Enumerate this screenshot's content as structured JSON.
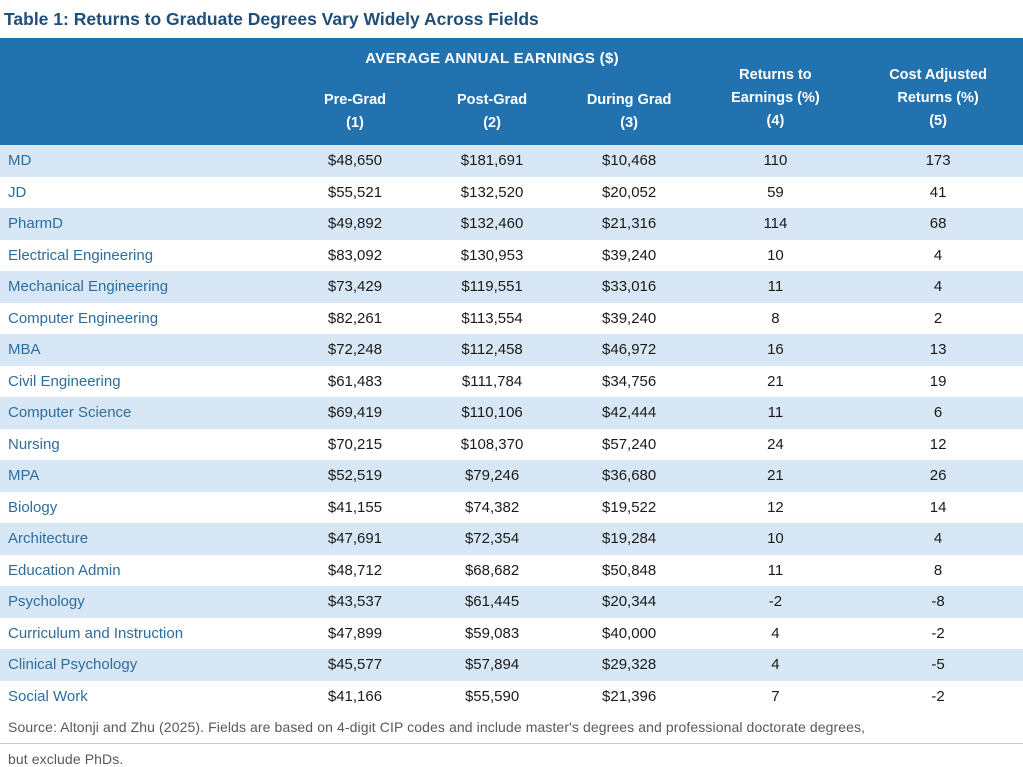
{
  "title": "Table 1: Returns to Graduate Degrees Vary Widely Across Fields",
  "table": {
    "group_header": "AVERAGE ANNUAL EARNINGS ($)",
    "columns": [
      {
        "label": ""
      },
      {
        "label": "Pre-Grad",
        "number": "(1)"
      },
      {
        "label": "Post-Grad",
        "number": "(2)"
      },
      {
        "label": "During Grad",
        "number": "(3)"
      },
      {
        "label_line1": "Returns to",
        "label_line2": "Earnings (%)",
        "number": "(4)"
      },
      {
        "label_line1": "Cost Adjusted",
        "label_line2": "Returns (%)",
        "number": "(5)"
      }
    ],
    "rows": [
      [
        "MD",
        "$48,650",
        "$181,691",
        "$10,468",
        "110",
        "173"
      ],
      [
        "JD",
        "$55,521",
        "$132,520",
        "$20,052",
        "59",
        "41"
      ],
      [
        "PharmD",
        "$49,892",
        "$132,460",
        "$21,316",
        "114",
        "68"
      ],
      [
        "Electrical Engineering",
        "$83,092",
        "$130,953",
        "$39,240",
        "10",
        "4"
      ],
      [
        "Mechanical Engineering",
        "$73,429",
        "$119,551",
        "$33,016",
        "11",
        "4"
      ],
      [
        "Computer Engineering",
        "$82,261",
        "$113,554",
        "$39,240",
        "8",
        "2"
      ],
      [
        "MBA",
        "$72,248",
        "$112,458",
        "$46,972",
        "16",
        "13"
      ],
      [
        "Civil Engineering",
        "$61,483",
        "$111,784",
        "$34,756",
        "21",
        "19"
      ],
      [
        "Computer Science",
        "$69,419",
        "$110,106",
        "$42,444",
        "11",
        "6"
      ],
      [
        "Nursing",
        "$70,215",
        "$108,370",
        "$57,240",
        "24",
        "12"
      ],
      [
        "MPA",
        "$52,519",
        "$79,246",
        "$36,680",
        "21",
        "26"
      ],
      [
        "Biology",
        "$41,155",
        "$74,382",
        "$19,522",
        "12",
        "14"
      ],
      [
        "Architecture",
        "$47,691",
        "$72,354",
        "$19,284",
        "10",
        "4"
      ],
      [
        "Education Admin",
        "$48,712",
        "$68,682",
        "$50,848",
        "11",
        "8"
      ],
      [
        "Psychology",
        "$43,537",
        "$61,445",
        "$20,344",
        "-2",
        "-8"
      ],
      [
        "Curriculum and Instruction",
        "$47,899",
        "$59,083",
        "$40,000",
        "4",
        "-2"
      ],
      [
        "Clinical Psychology",
        "$45,577",
        "$57,894",
        "$29,328",
        "4",
        "-5"
      ],
      [
        "Social Work",
        "$41,166",
        "$55,590",
        "$21,396",
        "7",
        "-2"
      ]
    ]
  },
  "footnote": {
    "line1": "Source: Altonji and Zhu (2025). Fields are based on 4-digit CIP codes and include master's degrees and professional doctorate degrees,",
    "line2": "but exclude PhDs."
  },
  "colors": {
    "header_bg": "#2272B0",
    "stripe_bg": "#D7E7F5",
    "title_text": "#1F4E79",
    "field_text": "#2D6D9D",
    "value_text": "#1A1A1A",
    "footnote_text": "#595959"
  }
}
